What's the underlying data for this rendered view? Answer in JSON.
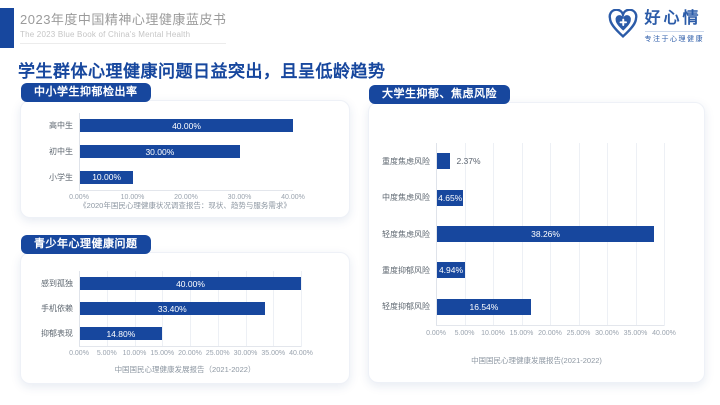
{
  "header": {
    "title": "2023年度中国精神心理健康蓝皮书",
    "subtitle": "The 2023 Blue Book of China's Mental Health",
    "logo": {
      "name": "好心情",
      "tagline": "专注于心理健康"
    }
  },
  "page_title": "学生群体心理健康问题日益突出，且呈低龄趋势",
  "colors": {
    "primary": "#17479E",
    "bar": "#17479E",
    "logo_blue": "#2B5BA8",
    "header_title_gray": "#9b9b9b",
    "header_subtitle_gray": "#c5c5c5"
  },
  "chart_data": [
    {
      "type": "bar",
      "orientation": "horizontal",
      "title": "中小学生抑郁检出率",
      "categories": [
        "高中生",
        "初中生",
        "小学生"
      ],
      "values": [
        40.0,
        30.0,
        10.0
      ],
      "value_labels": [
        "40.00%",
        "30.00%",
        "10.00%"
      ],
      "xlim": [
        0,
        40
      ],
      "ticks": [
        "0.00%",
        "10.00%",
        "20.00%",
        "30.00%",
        "40.00%"
      ],
      "grid": false,
      "source": "《2020年国民心理健康状况调查报告：现状、趋势与服务需求》"
    },
    {
      "type": "bar",
      "orientation": "horizontal",
      "title": "青少年心理健康问题",
      "categories": [
        "感到孤独",
        "手机依赖",
        "抑郁表现"
      ],
      "values": [
        40.0,
        33.4,
        14.8
      ],
      "value_labels": [
        "40.00%",
        "33.40%",
        "14.80%"
      ],
      "xlim": [
        0,
        40
      ],
      "ticks": [
        "0.00%",
        "5.00%",
        "10.00%",
        "15.00%",
        "20.00%",
        "25.00%",
        "30.00%",
        "35.00%",
        "40.00%"
      ],
      "grid": true,
      "source": "中国国民心理健康发展报告（2021-2022）"
    },
    {
      "type": "bar",
      "orientation": "horizontal",
      "title": "大学生抑郁、焦虑风险",
      "categories": [
        "重度焦虑风险",
        "中度焦虑风险",
        "轻度焦虑风险",
        "重度抑郁风险",
        "轻度抑郁风险"
      ],
      "values": [
        2.37,
        4.65,
        38.26,
        4.94,
        16.54
      ],
      "value_labels": [
        "2.37%",
        "4.65%",
        "38.26%",
        "4.94%",
        "16.54%"
      ],
      "xlim": [
        0,
        40
      ],
      "ticks": [
        "0.00%",
        "5.00%",
        "10.00%",
        "15.00%",
        "20.00%",
        "25.00%",
        "30.00%",
        "35.00%",
        "40.00%"
      ],
      "grid": true,
      "source": "中国国民心理健康发展报告(2021-2022)"
    }
  ]
}
